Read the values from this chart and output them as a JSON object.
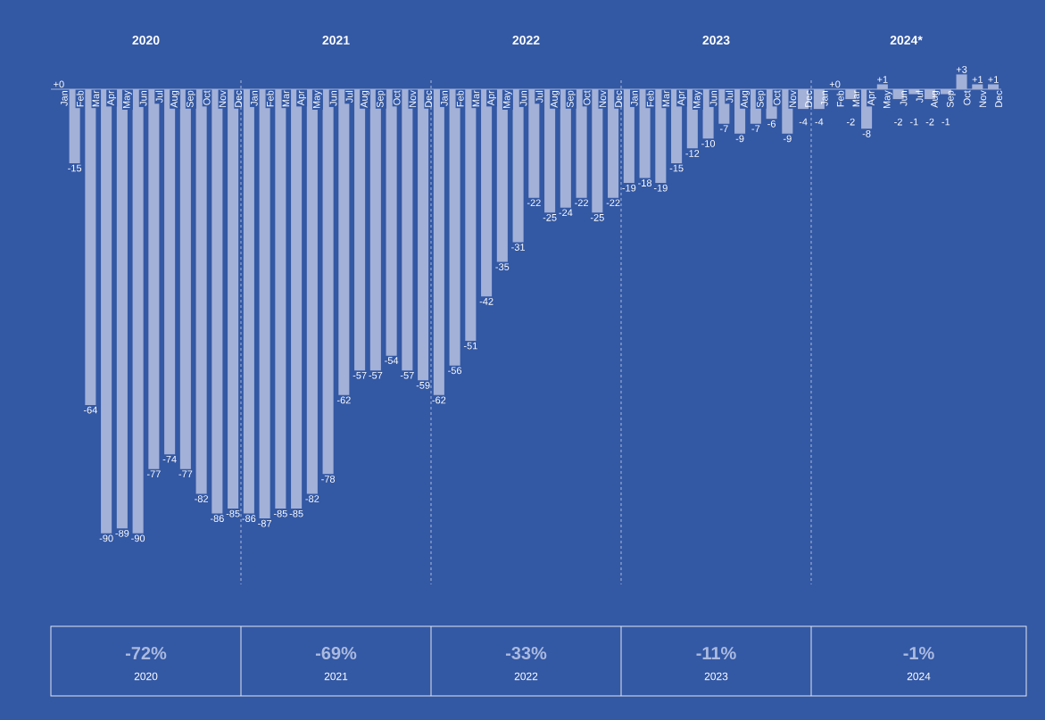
{
  "chart_data": {
    "type": "bar",
    "categories": [
      "Jan",
      "Feb",
      "Mar",
      "Apr",
      "May",
      "Jun",
      "Jul",
      "Aug",
      "Sep",
      "Oct",
      "Nov",
      "Dec",
      "Jan",
      "Feb",
      "Mar",
      "Apr",
      "May",
      "Jun",
      "Jul",
      "Aug",
      "Sep",
      "Oct",
      "Nov",
      "Dec",
      "Jan",
      "Feb",
      "Mar",
      "Apr",
      "May",
      "Jun",
      "Jul",
      "Aug",
      "Sep",
      "Oct",
      "Nov",
      "Dec",
      "Jan",
      "Feb",
      "Mar",
      "Apr",
      "May",
      "Jun",
      "Jul",
      "Aug",
      "Sep",
      "Oct",
      "Nov",
      "Dec",
      "Jan",
      "Feb",
      "Mar",
      "Apr",
      "May",
      "Jun",
      "Jul",
      "Aug",
      "Sep",
      "Oct",
      "Nov",
      "Dec"
    ],
    "values": [
      0,
      -15,
      -64,
      -90,
      -89,
      -90,
      -77,
      -74,
      -77,
      -82,
      -86,
      -85,
      -86,
      -87,
      -85,
      -85,
      -82,
      -78,
      -62,
      -57,
      -57,
      -54,
      -57,
      -59,
      -62,
      -56,
      -51,
      -42,
      -35,
      -31,
      -22,
      -25,
      -24,
      -22,
      -25,
      -22,
      -19,
      -18,
      -19,
      -15,
      -12,
      -10,
      -7,
      -9,
      -7,
      -6,
      -9,
      -4,
      -4,
      0,
      -2,
      -8,
      1,
      -2,
      -1,
      -2,
      -1,
      3,
      1,
      1
    ],
    "value_labels": [
      "+0",
      "-15",
      "-64",
      "-90",
      "-89",
      "-90",
      "-77",
      "-74",
      "-77",
      "-82",
      "-86",
      "-85",
      "-86",
      "-87",
      "-85",
      "-85",
      "-82",
      "-78",
      "-62",
      "-57",
      "-57",
      "-54",
      "-57",
      "-59",
      "-62",
      "-56",
      "-51",
      "-42",
      "-35",
      "-31",
      "-22",
      "-25",
      "-24",
      "-22",
      "-25",
      "-22",
      "-19",
      "-18",
      "-19",
      "-15",
      "-12",
      "-10",
      "-7",
      "-9",
      "-7",
      "-6",
      "-9",
      "-4",
      "-4",
      "+0",
      "-2",
      "-8",
      "+1",
      "-2",
      "-1",
      "-2",
      "-1",
      "+3",
      "+1",
      "+1"
    ],
    "color": "#a3b1d8",
    "tick_labels": "x",
    "annotations": [
      "2020",
      "2021",
      "2022",
      "2023",
      "2024*",
      "-72%",
      "2020",
      "-69%",
      "2021",
      "-33%",
      "2022",
      "-11%",
      "2023",
      "-1%",
      "2024"
    ]
  }
}
